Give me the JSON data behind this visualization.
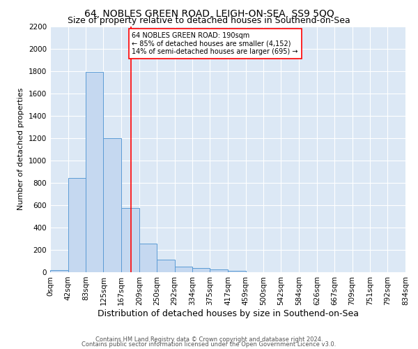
{
  "title": "64, NOBLES GREEN ROAD, LEIGH-ON-SEA, SS9 5QQ",
  "subtitle": "Size of property relative to detached houses in Southend-on-Sea",
  "xlabel": "Distribution of detached houses by size in Southend-on-Sea",
  "ylabel": "Number of detached properties",
  "bin_labels": [
    "0sqm",
    "42sqm",
    "83sqm",
    "125sqm",
    "167sqm",
    "209sqm",
    "250sqm",
    "292sqm",
    "334sqm",
    "375sqm",
    "417sqm",
    "459sqm",
    "500sqm",
    "542sqm",
    "584sqm",
    "626sqm",
    "667sqm",
    "709sqm",
    "751sqm",
    "792sqm",
    "834sqm"
  ],
  "bin_edges": [
    0,
    42,
    83,
    125,
    167,
    209,
    250,
    292,
    334,
    375,
    417,
    459,
    500,
    542,
    584,
    626,
    667,
    709,
    751,
    792,
    834
  ],
  "bar_heights": [
    20,
    840,
    1790,
    1200,
    575,
    255,
    110,
    50,
    35,
    25,
    15,
    0,
    0,
    0,
    0,
    0,
    0,
    0,
    0,
    0
  ],
  "bar_color": "#c5d8f0",
  "bar_edge_color": "#5b9bd5",
  "vline_x": 190,
  "vline_color": "red",
  "annotation_text": "64 NOBLES GREEN ROAD: 190sqm\n← 85% of detached houses are smaller (4,152)\n14% of semi-detached houses are larger (695) →",
  "annotation_box_color": "white",
  "annotation_box_edge_color": "red",
  "ylim": [
    0,
    2200
  ],
  "yticks": [
    0,
    200,
    400,
    600,
    800,
    1000,
    1200,
    1400,
    1600,
    1800,
    2000,
    2200
  ],
  "background_color": "#dce8f5",
  "grid_color": "white",
  "footer1": "Contains HM Land Registry data © Crown copyright and database right 2024.",
  "footer2": "Contains public sector information licensed under the Open Government Licence v3.0.",
  "title_fontsize": 10,
  "subtitle_fontsize": 9,
  "xlabel_fontsize": 9,
  "ylabel_fontsize": 8,
  "tick_fontsize": 7.5,
  "annotation_fontsize": 7,
  "footer_fontsize": 6
}
